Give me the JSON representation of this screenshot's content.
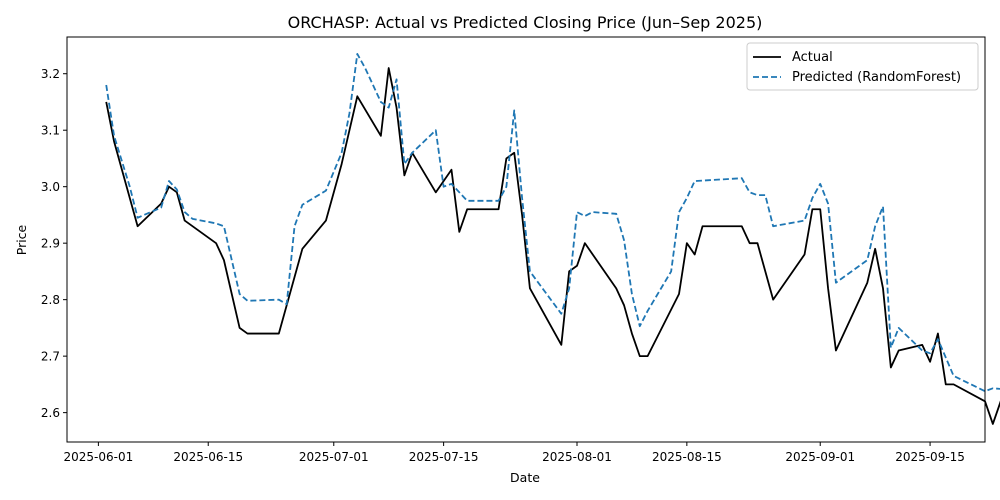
{
  "chart_data": {
    "type": "line",
    "title": "ORCHASP: Actual vs Predicted Closing Price (Jun–Sep 2025)",
    "xlabel": "Date",
    "ylabel": "Price",
    "x_ticks": [
      "2025-06-01",
      "2025-06-15",
      "2025-07-01",
      "2025-07-15",
      "2025-08-01",
      "2025-08-15",
      "2025-09-01",
      "2025-09-15"
    ],
    "y_ticks": [
      "2.6",
      "2.7",
      "2.8",
      "2.9",
      "3.0",
      "3.1",
      "3.2"
    ],
    "xlim": [
      "2025-05-28",
      "2025-09-22"
    ],
    "ylim": [
      2.548,
      3.265
    ],
    "legend_position": "top-right",
    "grid": false,
    "series": [
      {
        "name": "Actual",
        "color": "#000000",
        "dash": "solid",
        "points": [
          [
            "2025-06-02",
            3.15
          ],
          [
            "2025-06-03",
            3.08
          ],
          [
            "2025-06-05",
            2.98
          ],
          [
            "2025-06-06",
            2.93
          ],
          [
            "2025-06-09",
            2.97
          ],
          [
            "2025-06-10",
            3.0
          ],
          [
            "2025-06-11",
            2.99
          ],
          [
            "2025-06-12",
            2.94
          ],
          [
            "2025-06-16",
            2.9
          ],
          [
            "2025-06-17",
            2.87
          ],
          [
            "2025-06-19",
            2.75
          ],
          [
            "2025-06-20",
            2.74
          ],
          [
            "2025-06-24",
            2.74
          ],
          [
            "2025-06-27",
            2.89
          ],
          [
            "2025-06-30",
            2.94
          ],
          [
            "2025-07-02",
            3.04
          ],
          [
            "2025-07-03",
            3.1
          ],
          [
            "2025-07-04",
            3.16
          ],
          [
            "2025-07-07",
            3.09
          ],
          [
            "2025-07-08",
            3.21
          ],
          [
            "2025-07-09",
            3.14
          ],
          [
            "2025-07-10",
            3.02
          ],
          [
            "2025-07-11",
            3.06
          ],
          [
            "2025-07-14",
            2.99
          ],
          [
            "2025-07-16",
            3.03
          ],
          [
            "2025-07-17",
            2.92
          ],
          [
            "2025-07-18",
            2.96
          ],
          [
            "2025-07-22",
            2.96
          ],
          [
            "2025-07-23",
            3.05
          ],
          [
            "2025-07-24",
            3.06
          ],
          [
            "2025-07-25",
            2.95
          ],
          [
            "2025-07-26",
            2.82
          ],
          [
            "2025-07-30",
            2.72
          ],
          [
            "2025-07-31",
            2.85
          ],
          [
            "2025-08-01",
            2.86
          ],
          [
            "2025-08-02",
            2.9
          ],
          [
            "2025-08-06",
            2.82
          ],
          [
            "2025-08-07",
            2.79
          ],
          [
            "2025-08-08",
            2.74
          ],
          [
            "2025-08-09",
            2.7
          ],
          [
            "2025-08-10",
            2.7
          ],
          [
            "2025-08-14",
            2.81
          ],
          [
            "2025-08-15",
            2.9
          ],
          [
            "2025-08-16",
            2.88
          ],
          [
            "2025-08-17",
            2.93
          ],
          [
            "2025-08-22",
            2.93
          ],
          [
            "2025-08-23",
            2.9
          ],
          [
            "2025-08-24",
            2.9
          ],
          [
            "2025-08-26",
            2.8
          ],
          [
            "2025-08-30",
            2.88
          ],
          [
            "2025-08-31",
            2.96
          ],
          [
            "2025-09-01",
            2.96
          ],
          [
            "2025-09-02",
            2.82
          ],
          [
            "2025-09-03",
            2.71
          ],
          [
            "2025-09-07",
            2.83
          ],
          [
            "2025-09-08",
            2.89
          ],
          [
            "2025-09-09",
            2.82
          ],
          [
            "2025-09-10",
            2.68
          ],
          [
            "2025-09-11",
            2.71
          ],
          [
            "2025-09-14",
            2.72
          ],
          [
            "2025-09-15",
            2.69
          ],
          [
            "2025-09-16",
            2.74
          ],
          [
            "2025-09-17",
            2.65
          ],
          [
            "2025-09-18",
            2.65
          ],
          [
            "2025-09-22",
            2.62
          ],
          [
            "2025-09-23",
            2.58
          ],
          [
            "2025-09-24",
            2.62
          ],
          [
            "2025-09-25",
            2.67
          ]
        ]
      },
      {
        "name": "Predicted (RandomForest)",
        "color": "#1f77b4",
        "dash": "dashed",
        "points": [
          [
            "2025-06-02",
            3.18
          ],
          [
            "2025-06-03",
            3.09
          ],
          [
            "2025-06-05",
            3.0
          ],
          [
            "2025-06-06",
            2.945
          ],
          [
            "2025-06-09",
            2.963
          ],
          [
            "2025-06-10",
            3.01
          ],
          [
            "2025-06-11",
            2.995
          ],
          [
            "2025-06-12",
            2.955
          ],
          [
            "2025-06-13",
            2.943
          ],
          [
            "2025-06-16",
            2.935
          ],
          [
            "2025-06-17",
            2.93
          ],
          [
            "2025-06-19",
            2.81
          ],
          [
            "2025-06-20",
            2.798
          ],
          [
            "2025-06-24",
            2.8
          ],
          [
            "2025-06-25",
            2.792
          ],
          [
            "2025-06-26",
            2.93
          ],
          [
            "2025-06-27",
            2.968
          ],
          [
            "2025-06-30",
            2.993
          ],
          [
            "2025-07-02",
            3.06
          ],
          [
            "2025-07-03",
            3.13
          ],
          [
            "2025-07-04",
            3.235
          ],
          [
            "2025-07-05",
            3.21
          ],
          [
            "2025-07-07",
            3.15
          ],
          [
            "2025-07-08",
            3.14
          ],
          [
            "2025-07-09",
            3.19
          ],
          [
            "2025-07-10",
            3.04
          ],
          [
            "2025-07-11",
            3.06
          ],
          [
            "2025-07-14",
            3.1
          ],
          [
            "2025-07-15",
            3.0
          ],
          [
            "2025-07-16",
            3.005
          ],
          [
            "2025-07-18",
            2.975
          ],
          [
            "2025-07-22",
            2.975
          ],
          [
            "2025-07-23",
            3.0
          ],
          [
            "2025-07-24",
            3.135
          ],
          [
            "2025-07-25",
            2.98
          ],
          [
            "2025-07-26",
            2.85
          ],
          [
            "2025-07-30",
            2.775
          ],
          [
            "2025-07-31",
            2.82
          ],
          [
            "2025-08-01",
            2.955
          ],
          [
            "2025-08-02",
            2.948
          ],
          [
            "2025-08-03",
            2.955
          ],
          [
            "2025-08-06",
            2.952
          ],
          [
            "2025-08-07",
            2.905
          ],
          [
            "2025-08-08",
            2.81
          ],
          [
            "2025-08-09",
            2.753
          ],
          [
            "2025-08-10",
            2.78
          ],
          [
            "2025-08-13",
            2.85
          ],
          [
            "2025-08-14",
            2.955
          ],
          [
            "2025-08-15",
            2.98
          ],
          [
            "2025-08-16",
            3.01
          ],
          [
            "2025-08-22",
            3.015
          ],
          [
            "2025-08-23",
            2.99
          ],
          [
            "2025-08-24",
            2.985
          ],
          [
            "2025-08-25",
            2.985
          ],
          [
            "2025-08-26",
            2.93
          ],
          [
            "2025-08-30",
            2.94
          ],
          [
            "2025-08-31",
            2.98
          ],
          [
            "2025-09-01",
            3.005
          ],
          [
            "2025-09-02",
            2.97
          ],
          [
            "2025-09-03",
            2.83
          ],
          [
            "2025-09-07",
            2.87
          ],
          [
            "2025-09-08",
            2.93
          ],
          [
            "2025-09-09",
            2.965
          ],
          [
            "2025-09-10",
            2.715
          ],
          [
            "2025-09-11",
            2.75
          ],
          [
            "2025-09-14",
            2.71
          ],
          [
            "2025-09-15",
            2.705
          ],
          [
            "2025-09-16",
            2.73
          ],
          [
            "2025-09-18",
            2.665
          ],
          [
            "2025-09-22",
            2.638
          ],
          [
            "2025-09-23",
            2.643
          ],
          [
            "2025-09-24",
            2.642
          ],
          [
            "2025-09-25",
            2.68
          ]
        ]
      }
    ]
  }
}
